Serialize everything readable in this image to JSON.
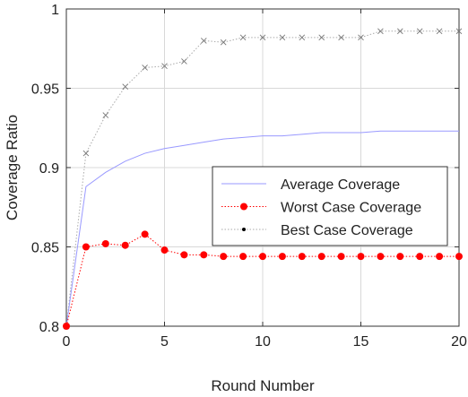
{
  "chart_data": {
    "type": "line",
    "xlabel": "Round Number",
    "ylabel": "Coverage Ratio",
    "xlim": [
      0,
      20
    ],
    "ylim": [
      0.8,
      1.0
    ],
    "xticks": [
      0,
      5,
      10,
      15,
      20
    ],
    "yticks": [
      0.8,
      0.85,
      0.9,
      0.95,
      1.0
    ],
    "ytick_labels": [
      "0.8",
      "0.85",
      "0.9",
      "0.95",
      "1"
    ],
    "grid": true,
    "legend_position": "center-right",
    "x": [
      0,
      1,
      2,
      3,
      4,
      5,
      6,
      7,
      8,
      9,
      10,
      11,
      12,
      13,
      14,
      15,
      16,
      17,
      18,
      19,
      20
    ],
    "series": [
      {
        "name": "Average Coverage",
        "color": "#9999ff",
        "marker": "none",
        "line": "solid",
        "values": [
          0.8,
          0.888,
          0.897,
          0.904,
          0.909,
          0.912,
          0.914,
          0.916,
          0.918,
          0.919,
          0.92,
          0.92,
          0.921,
          0.922,
          0.922,
          0.922,
          0.923,
          0.923,
          0.923,
          0.923,
          0.923
        ]
      },
      {
        "name": "Worst Case Coverage",
        "color": "#ff0000",
        "marker": "dot",
        "line": "dotted",
        "values": [
          0.8,
          0.85,
          0.852,
          0.851,
          0.858,
          0.848,
          0.845,
          0.845,
          0.844,
          0.844,
          0.844,
          0.844,
          0.844,
          0.844,
          0.844,
          0.844,
          0.844,
          0.844,
          0.844,
          0.844,
          0.844
        ]
      },
      {
        "name": "Best Case Coverage",
        "color": "#aaaaaa",
        "marker": "x",
        "line": "dotted",
        "values": [
          0.8,
          0.909,
          0.933,
          0.951,
          0.963,
          0.964,
          0.967,
          0.98,
          0.979,
          0.982,
          0.982,
          0.982,
          0.982,
          0.982,
          0.982,
          0.982,
          0.986,
          0.986,
          0.986,
          0.986,
          0.986
        ]
      }
    ],
    "legend_marker_colors": {
      "Average Coverage": "#9999ff",
      "Worst Case Coverage": "#ff0000",
      "Best Case Coverage": "#000000"
    }
  }
}
